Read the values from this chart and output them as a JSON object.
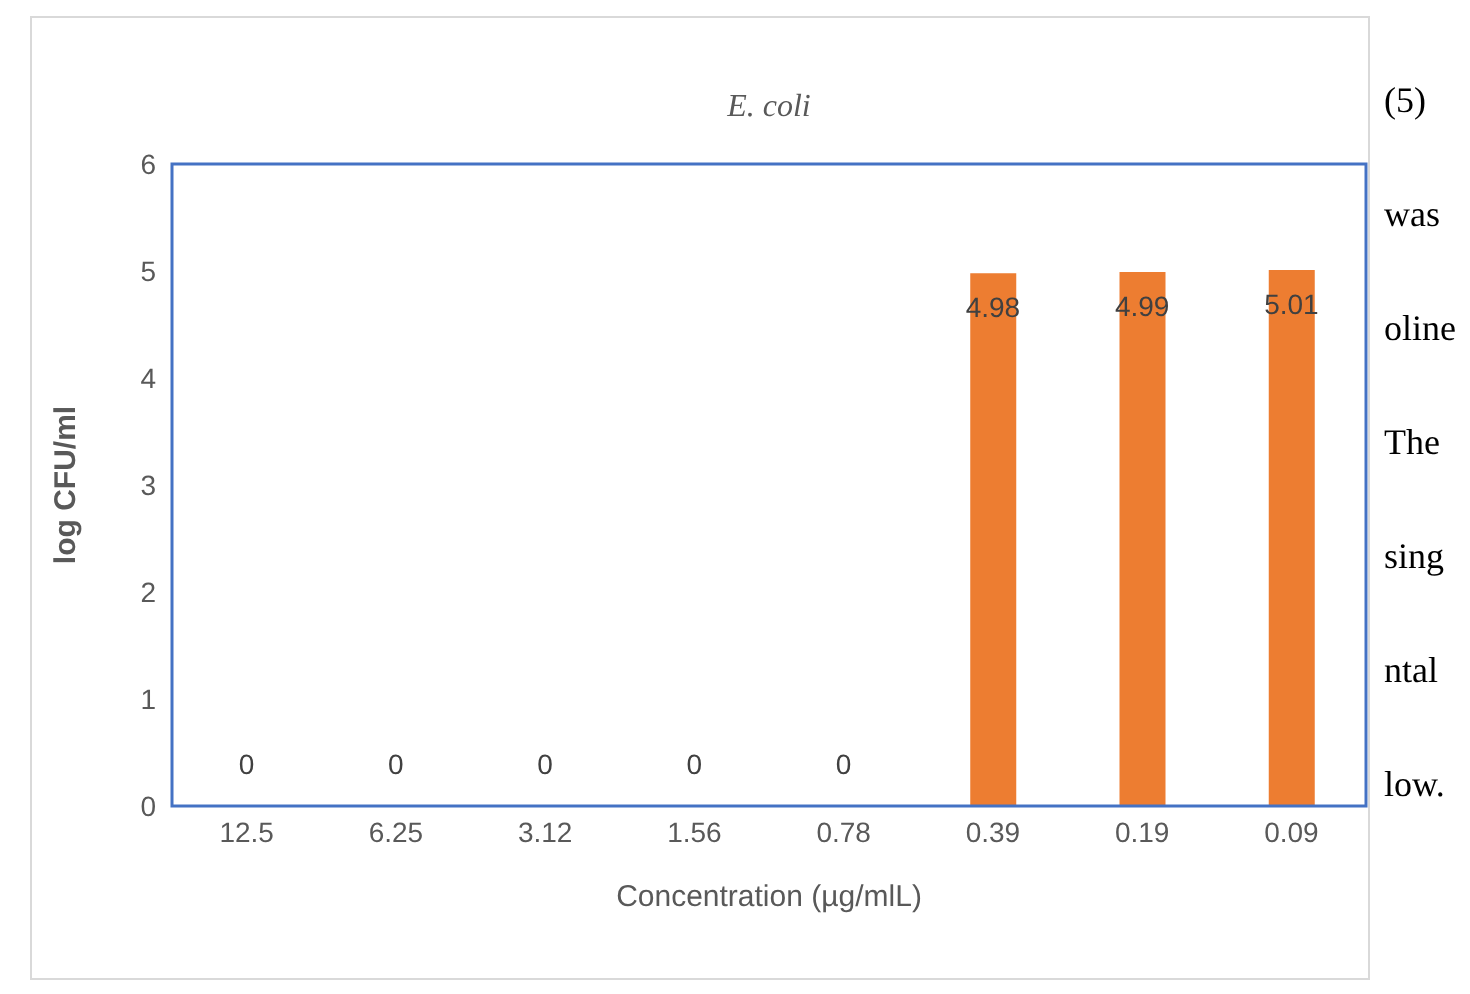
{
  "chart_data": {
    "type": "bar",
    "title": "E. coli",
    "xlabel": "Concentration (µg/mlL)",
    "ylabel": "log CFU/ml",
    "categories": [
      "12.5",
      "6.25",
      "3.12",
      "1.56",
      "0.78",
      "0.39",
      "0.19",
      "0.09"
    ],
    "values": [
      0,
      0,
      0,
      0,
      0,
      4.98,
      4.99,
      5.01
    ],
    "color": "#ed7d31",
    "ylim": [
      0,
      6
    ],
    "yticks": [
      0,
      1,
      2,
      3,
      4,
      5,
      6
    ],
    "data_labels": true,
    "annotations": [
      "(5)",
      "was",
      "oline",
      "The",
      "sing",
      "ntal",
      "low."
    ]
  }
}
